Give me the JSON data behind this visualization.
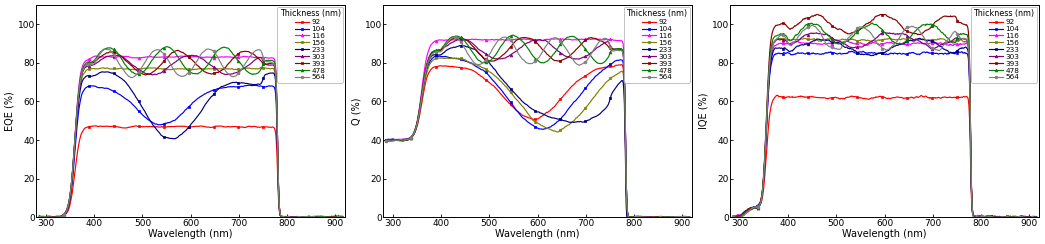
{
  "thicknesses": [
    92,
    104,
    116,
    156,
    233,
    303,
    393,
    478,
    564
  ],
  "colors": [
    "#ff0000",
    "#0000ff",
    "#ff00ff",
    "#808000",
    "#000080",
    "#800080",
    "#8B0000",
    "#008000",
    "#808080"
  ],
  "markers": [
    "s",
    "s",
    "^",
    "s",
    "s",
    "^",
    "s",
    "^",
    "o"
  ],
  "xlabel": "Wavelength (nm)",
  "ylabel_eqe": "EQE (%)",
  "ylabel_q": "Q (%)",
  "ylabel_iqe": "IQE (%)",
  "legend_title": "Thickness (nm)",
  "xmin": 280,
  "xmax": 920,
  "ymin": 0,
  "ymax": 110,
  "xticks": [
    300,
    400,
    500,
    600,
    700,
    800,
    900
  ],
  "yticks": [
    0,
    20,
    40,
    60,
    80,
    100
  ]
}
